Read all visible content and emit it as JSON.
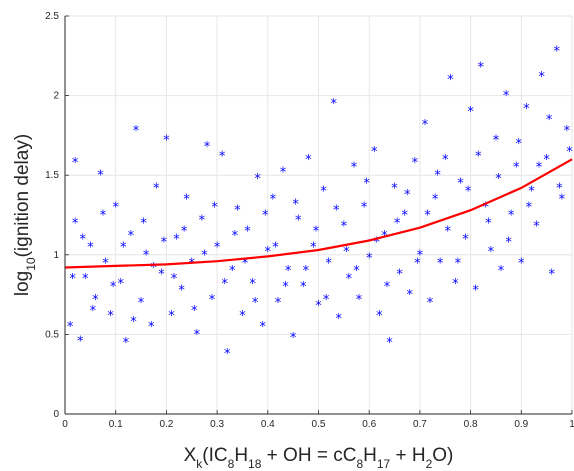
{
  "chart_data": {
    "type": "scatter",
    "title": "",
    "xlabel": {
      "parts": [
        {
          "t": "X",
          "sub": false
        },
        {
          "t": "k",
          "sub": true
        },
        {
          "t": "(IC",
          "sub": false
        },
        {
          "t": "8",
          "sub": true
        },
        {
          "t": "H",
          "sub": false
        },
        {
          "t": "18",
          "sub": true
        },
        {
          "t": " + OH = cC",
          "sub": false
        },
        {
          "t": "8",
          "sub": true
        },
        {
          "t": "H",
          "sub": false
        },
        {
          "t": "17",
          "sub": true
        },
        {
          "t": " + H",
          "sub": false
        },
        {
          "t": "2",
          "sub": true
        },
        {
          "t": "O)",
          "sub": false
        }
      ]
    },
    "ylabel": {
      "parts": [
        {
          "t": "log",
          "sub": false
        },
        {
          "t": "10",
          "sub": true
        },
        {
          "t": "(ignition delay)",
          "sub": false
        }
      ]
    },
    "xlim": [
      0,
      1
    ],
    "ylim": [
      0,
      2.5
    ],
    "x_ticks": [
      "0",
      "0.1",
      "0.2",
      "0.3",
      "0.4",
      "0.5",
      "0.6",
      "0.7",
      "0.8",
      "0.9",
      "1"
    ],
    "y_ticks": [
      "0",
      "0.5",
      "1",
      "1.5",
      "2",
      "2.5"
    ],
    "grid": true,
    "legend": "none",
    "series": [
      {
        "kind": "scatter",
        "marker": "*",
        "color": "#0000ff",
        "points": [
          [
            0.01,
            0.55
          ],
          [
            0.02,
            1.58
          ],
          [
            0.03,
            0.46
          ],
          [
            0.02,
            1.2
          ],
          [
            0.04,
            0.85
          ],
          [
            0.05,
            1.05
          ],
          [
            0.06,
            0.72
          ],
          [
            0.07,
            1.5
          ],
          [
            0.08,
            0.95
          ],
          [
            0.09,
            0.62
          ],
          [
            0.1,
            1.3
          ],
          [
            0.11,
            0.82
          ],
          [
            0.12,
            0.45
          ],
          [
            0.13,
            1.12
          ],
          [
            0.14,
            1.78
          ],
          [
            0.15,
            0.7
          ],
          [
            0.16,
            1.0
          ],
          [
            0.17,
            0.55
          ],
          [
            0.18,
            1.42
          ],
          [
            0.19,
            0.88
          ],
          [
            0.2,
            1.72
          ],
          [
            0.21,
            0.62
          ],
          [
            0.22,
            1.1
          ],
          [
            0.23,
            0.78
          ],
          [
            0.24,
            1.35
          ],
          [
            0.25,
            0.95
          ],
          [
            0.26,
            0.5
          ],
          [
            0.27,
            1.22
          ],
          [
            0.28,
            1.68
          ],
          [
            0.29,
            0.72
          ],
          [
            0.3,
            1.05
          ],
          [
            0.31,
            1.62
          ],
          [
            0.32,
            0.38
          ],
          [
            0.33,
            0.9
          ],
          [
            0.34,
            1.28
          ],
          [
            0.35,
            0.62
          ],
          [
            0.36,
            1.15
          ],
          [
            0.37,
            0.82
          ],
          [
            0.38,
            1.48
          ],
          [
            0.39,
            0.55
          ],
          [
            0.4,
            1.02
          ],
          [
            0.41,
            1.35
          ],
          [
            0.42,
            0.7
          ],
          [
            0.43,
            1.52
          ],
          [
            0.44,
            0.9
          ],
          [
            0.45,
            0.48
          ],
          [
            0.46,
            1.22
          ],
          [
            0.47,
            0.8
          ],
          [
            0.48,
            1.6
          ],
          [
            0.49,
            1.05
          ],
          [
            0.5,
            0.68
          ],
          [
            0.51,
            1.4
          ],
          [
            0.52,
            0.95
          ],
          [
            0.53,
            1.95
          ],
          [
            0.54,
            0.6
          ],
          [
            0.55,
            1.18
          ],
          [
            0.56,
            0.85
          ],
          [
            0.57,
            1.55
          ],
          [
            0.58,
            0.72
          ],
          [
            0.59,
            1.3
          ],
          [
            0.6,
            0.98
          ],
          [
            0.61,
            1.65
          ],
          [
            0.62,
            0.62
          ],
          [
            0.63,
            1.12
          ],
          [
            0.64,
            0.45
          ],
          [
            0.65,
            1.42
          ],
          [
            0.66,
            0.88
          ],
          [
            0.67,
            1.25
          ],
          [
            0.68,
            0.75
          ],
          [
            0.69,
            1.58
          ],
          [
            0.7,
            1.0
          ],
          [
            0.71,
            1.82
          ],
          [
            0.72,
            0.7
          ],
          [
            0.73,
            1.35
          ],
          [
            0.74,
            0.95
          ],
          [
            0.75,
            1.6
          ],
          [
            0.76,
            2.1
          ],
          [
            0.77,
            0.82
          ],
          [
            0.78,
            1.45
          ],
          [
            0.79,
            1.1
          ],
          [
            0.8,
            1.9
          ],
          [
            0.81,
            0.78
          ],
          [
            0.82,
            2.18
          ],
          [
            0.83,
            1.3
          ],
          [
            0.84,
            1.02
          ],
          [
            0.85,
            1.72
          ],
          [
            0.86,
            0.9
          ],
          [
            0.87,
            2.0
          ],
          [
            0.88,
            1.25
          ],
          [
            0.89,
            1.55
          ],
          [
            0.9,
            0.95
          ],
          [
            0.91,
            1.92
          ],
          [
            0.92,
            1.4
          ],
          [
            0.93,
            1.18
          ],
          [
            0.94,
            2.12
          ],
          [
            0.95,
            1.6
          ],
          [
            0.96,
            0.88
          ],
          [
            0.97,
            2.28
          ],
          [
            0.98,
            1.35
          ],
          [
            0.99,
            1.78
          ],
          [
            0.015,
            0.85
          ],
          [
            0.035,
            1.1
          ],
          [
            0.055,
            0.65
          ],
          [
            0.075,
            1.25
          ],
          [
            0.095,
            0.8
          ],
          [
            0.115,
            1.05
          ],
          [
            0.135,
            0.58
          ],
          [
            0.155,
            1.2
          ],
          [
            0.175,
            0.92
          ],
          [
            0.195,
            1.08
          ],
          [
            0.215,
            0.85
          ],
          [
            0.235,
            1.15
          ],
          [
            0.255,
            0.65
          ],
          [
            0.275,
            1.0
          ],
          [
            0.295,
            1.3
          ],
          [
            0.315,
            0.82
          ],
          [
            0.335,
            1.12
          ],
          [
            0.355,
            0.95
          ],
          [
            0.375,
            0.7
          ],
          [
            0.395,
            1.25
          ],
          [
            0.415,
            1.05
          ],
          [
            0.435,
            0.8
          ],
          [
            0.455,
            1.32
          ],
          [
            0.475,
            0.9
          ],
          [
            0.495,
            1.15
          ],
          [
            0.515,
            0.72
          ],
          [
            0.535,
            1.28
          ],
          [
            0.555,
            1.02
          ],
          [
            0.575,
            0.9
          ],
          [
            0.595,
            1.45
          ],
          [
            0.615,
            1.08
          ],
          [
            0.635,
            0.8
          ],
          [
            0.655,
            1.2
          ],
          [
            0.675,
            1.38
          ],
          [
            0.695,
            0.95
          ],
          [
            0.715,
            1.25
          ],
          [
            0.735,
            1.5
          ],
          [
            0.755,
            1.15
          ],
          [
            0.775,
            0.95
          ],
          [
            0.795,
            1.4
          ],
          [
            0.815,
            1.62
          ],
          [
            0.835,
            1.2
          ],
          [
            0.855,
            1.48
          ],
          [
            0.875,
            1.08
          ],
          [
            0.895,
            1.7
          ],
          [
            0.915,
            1.3
          ],
          [
            0.935,
            1.55
          ],
          [
            0.955,
            1.85
          ],
          [
            0.975,
            1.42
          ],
          [
            0.995,
            1.65
          ]
        ]
      },
      {
        "kind": "line",
        "name": "",
        "color": "#ff0000",
        "x": [
          0,
          0.1,
          0.2,
          0.3,
          0.4,
          0.5,
          0.6,
          0.7,
          0.8,
          0.9,
          1.0
        ],
        "y": [
          0.92,
          0.93,
          0.94,
          0.96,
          0.99,
          1.03,
          1.09,
          1.17,
          1.28,
          1.42,
          1.6
        ]
      }
    ]
  }
}
